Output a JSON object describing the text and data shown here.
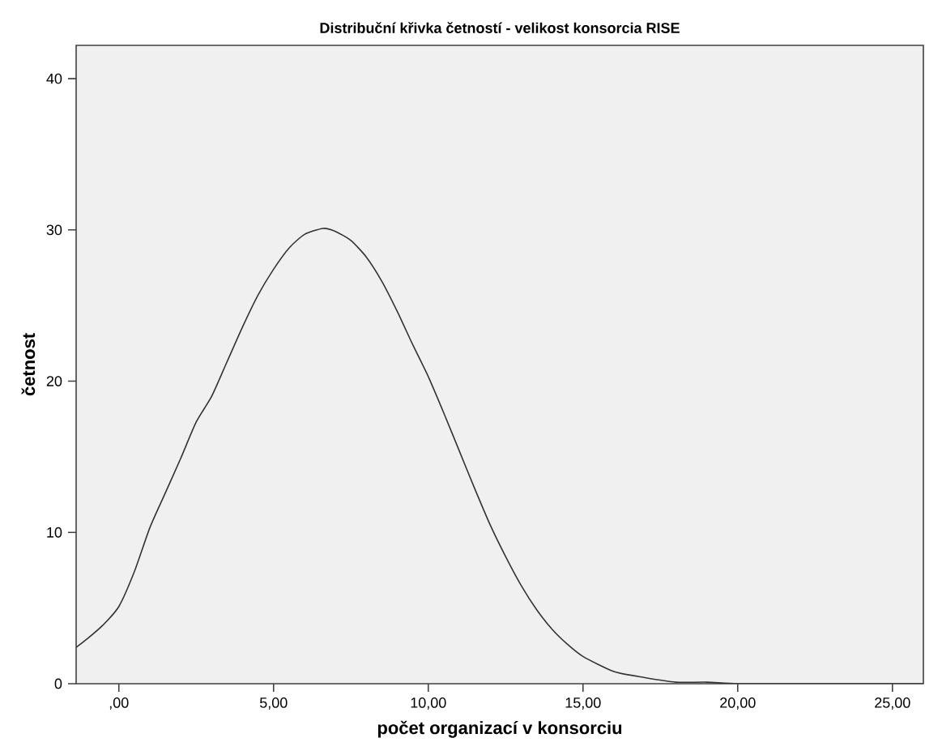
{
  "chart_data": {
    "type": "line",
    "title": "Distribuční křivka četností - velikost konsorcia RISE",
    "xlabel": "počet organizací v konsorciu",
    "ylabel": "četnost",
    "x": [
      -1.38,
      -1,
      -0.5,
      0,
      0.5,
      1,
      1.5,
      2,
      2.5,
      3,
      3.5,
      4,
      4.5,
      5,
      5.5,
      6,
      6.6,
      7,
      7.5,
      8,
      8.5,
      9,
      9.5,
      10,
      10.5,
      11,
      11.5,
      12,
      12.5,
      13,
      13.5,
      14,
      14.5,
      15,
      16,
      17,
      18,
      19,
      20,
      22,
      24,
      26
    ],
    "series": [
      {
        "color": "#333333",
        "values": [
          2.4,
          3.0,
          3.9,
          5.1,
          7.4,
          10.3,
          12.6,
          14.9,
          17.3,
          19.0,
          21.3,
          23.6,
          25.7,
          27.4,
          28.8,
          29.7,
          30.1,
          29.9,
          29.3,
          28.2,
          26.6,
          24.6,
          22.4,
          20.3,
          17.9,
          15.4,
          12.9,
          10.5,
          8.4,
          6.5,
          4.9,
          3.6,
          2.6,
          1.8,
          0.8,
          0.4,
          0.1,
          0.1,
          0,
          0,
          0,
          0
        ]
      }
    ],
    "xlim": [
      -1.38,
      26
    ],
    "ylim": [
      0,
      42.2
    ],
    "xticks": [
      {
        "value": 0,
        "label": ",00"
      },
      {
        "value": 5,
        "label": "5,00"
      },
      {
        "value": 10,
        "label": "10,00"
      },
      {
        "value": 15,
        "label": "15,00"
      },
      {
        "value": 20,
        "label": "20,00"
      },
      {
        "value": 25,
        "label": "25,00"
      }
    ],
    "yticks": [
      0,
      10,
      20,
      30,
      40
    ],
    "grid": false,
    "marker": "none",
    "line_style": "solid"
  }
}
